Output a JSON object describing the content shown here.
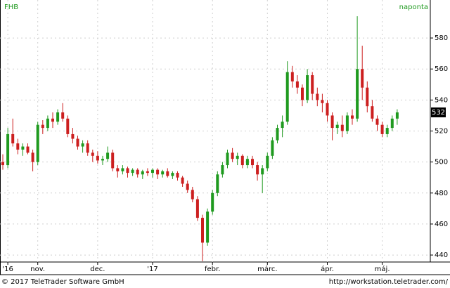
{
  "chart_data": {
    "type": "candlestick",
    "title": "FHB",
    "subtitle": "naponta",
    "categories": [
      null,
      "'16",
      null,
      null,
      null,
      null,
      null,
      "nov.",
      null,
      null,
      null,
      null,
      null,
      null,
      null,
      null,
      null,
      null,
      null,
      "dec.",
      null,
      null,
      null,
      null,
      null,
      null,
      null,
      null,
      null,
      null,
      "'17",
      null,
      null,
      null,
      null,
      null,
      null,
      null,
      null,
      null,
      null,
      null,
      "febr.",
      null,
      null,
      null,
      null,
      null,
      null,
      null,
      null,
      null,
      null,
      "márc.",
      null,
      null,
      null,
      null,
      null,
      null,
      null,
      null,
      null,
      null,
      null,
      "ápr.",
      null,
      null,
      null,
      null,
      null,
      null,
      null,
      null,
      null,
      null,
      "máj.",
      null,
      null,
      null
    ],
    "open": [
      500,
      498,
      518,
      512,
      508,
      510,
      506,
      500,
      524,
      522,
      528,
      526,
      532,
      528,
      518,
      515,
      510,
      512,
      506,
      504,
      501,
      502,
      506,
      496,
      494,
      496,
      493,
      495,
      492,
      494,
      493,
      495,
      492,
      494,
      491,
      493,
      490,
      486,
      482,
      476,
      464,
      448,
      468,
      480,
      492,
      498,
      506,
      502,
      504,
      498,
      502,
      498,
      492,
      496,
      504,
      514,
      522,
      526,
      558,
      552,
      548,
      540,
      556,
      544,
      540,
      538,
      530,
      522,
      524,
      520,
      530,
      528,
      560,
      548,
      536,
      528,
      524,
      518,
      522,
      528
    ],
    "high": [
      505,
      522,
      528,
      515,
      512,
      512,
      508,
      526,
      527,
      530,
      532,
      534,
      538,
      530,
      522,
      517,
      514,
      514,
      508,
      507,
      504,
      510,
      508,
      498,
      498,
      497,
      496,
      496,
      495,
      496,
      496,
      496,
      495,
      496,
      494,
      494,
      491,
      488,
      484,
      478,
      466,
      470,
      482,
      494,
      500,
      508,
      509,
      506,
      505,
      504,
      504,
      500,
      498,
      506,
      516,
      524,
      530,
      565,
      562,
      556,
      550,
      560,
      558,
      548,
      544,
      540,
      532,
      526,
      530,
      532,
      534,
      594,
      575,
      552,
      540,
      530,
      526,
      524,
      530,
      534
    ],
    "low": [
      495,
      496,
      510,
      505,
      504,
      505,
      494,
      498,
      518,
      520,
      522,
      524,
      526,
      516,
      512,
      508,
      506,
      504,
      500,
      499,
      498,
      500,
      494,
      490,
      492,
      490,
      491,
      490,
      489,
      491,
      490,
      489,
      490,
      490,
      489,
      488,
      484,
      480,
      474,
      462,
      436,
      446,
      466,
      478,
      490,
      496,
      500,
      498,
      496,
      496,
      496,
      488,
      480,
      494,
      502,
      512,
      516,
      524,
      548,
      544,
      536,
      538,
      540,
      536,
      532,
      526,
      514,
      518,
      516,
      518,
      524,
      526,
      540,
      532,
      526,
      520,
      516,
      516,
      520,
      524
    ],
    "close": [
      498,
      518,
      512,
      508,
      510,
      506,
      500,
      524,
      522,
      528,
      526,
      532,
      528,
      518,
      515,
      510,
      512,
      506,
      504,
      501,
      502,
      506,
      496,
      494,
      496,
      493,
      495,
      492,
      494,
      493,
      495,
      492,
      494,
      491,
      493,
      490,
      486,
      482,
      476,
      464,
      448,
      468,
      480,
      492,
      498,
      506,
      502,
      504,
      498,
      502,
      498,
      492,
      496,
      504,
      514,
      522,
      526,
      558,
      552,
      548,
      540,
      556,
      544,
      540,
      538,
      530,
      522,
      524,
      520,
      530,
      528,
      560,
      548,
      536,
      528,
      524,
      518,
      522,
      528,
      532
    ],
    "up_color": "#1f9a1f",
    "down_color": "#cc1f1f",
    "ylim": [
      435.5,
      604.5
    ],
    "yticks": [
      440,
      460,
      480,
      500,
      520,
      540,
      560,
      580
    ],
    "grid": true
  },
  "footer": {
    "left": "© 2017 TeleTrader Software GmbH",
    "right": "http://workstation.teletrader.com/"
  }
}
